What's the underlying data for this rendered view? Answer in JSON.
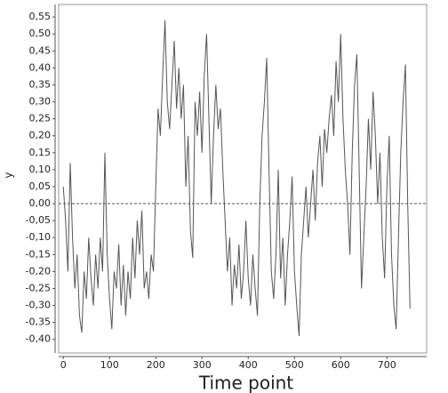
{
  "chart_data": {
    "type": "line",
    "x_label": "Time point",
    "y_label": "y",
    "x": [
      0,
      5,
      10,
      15,
      20,
      25,
      30,
      35,
      40,
      45,
      50,
      55,
      60,
      65,
      70,
      75,
      80,
      85,
      90,
      95,
      100,
      105,
      110,
      115,
      120,
      125,
      130,
      135,
      140,
      145,
      150,
      155,
      160,
      165,
      170,
      175,
      180,
      185,
      190,
      195,
      200,
      205,
      210,
      215,
      220,
      225,
      230,
      235,
      240,
      245,
      250,
      255,
      260,
      265,
      270,
      275,
      280,
      285,
      290,
      295,
      300,
      305,
      310,
      315,
      320,
      325,
      330,
      335,
      340,
      345,
      350,
      355,
      360,
      365,
      370,
      375,
      380,
      385,
      390,
      395,
      400,
      405,
      410,
      415,
      420,
      425,
      430,
      435,
      440,
      445,
      450,
      455,
      460,
      465,
      470,
      475,
      480,
      485,
      490,
      495,
      500,
      505,
      510,
      515,
      520,
      525,
      530,
      535,
      540,
      545,
      550,
      555,
      560,
      565,
      570,
      575,
      580,
      585,
      590,
      595,
      600,
      605,
      610,
      615,
      620,
      625,
      630,
      635,
      640,
      645,
      650,
      655,
      660,
      665,
      670,
      675,
      680,
      685,
      690,
      695,
      700,
      705,
      710,
      715,
      720,
      725,
      730,
      735,
      740,
      745,
      750
    ],
    "series": [
      {
        "color": "#555555",
        "values": [
          0.05,
          -0.05,
          -0.2,
          0.12,
          -0.1,
          -0.25,
          -0.15,
          -0.33,
          -0.38,
          -0.2,
          -0.28,
          -0.1,
          -0.22,
          -0.3,
          -0.15,
          -0.25,
          -0.1,
          -0.2,
          0.15,
          -0.15,
          -0.28,
          -0.37,
          -0.2,
          -0.25,
          -0.12,
          -0.3,
          -0.18,
          -0.33,
          -0.2,
          -0.28,
          -0.1,
          -0.22,
          -0.05,
          -0.15,
          -0.02,
          -0.25,
          -0.2,
          -0.28,
          -0.15,
          -0.2,
          0.05,
          0.28,
          0.2,
          0.38,
          0.54,
          0.3,
          0.22,
          0.35,
          0.48,
          0.28,
          0.4,
          0.25,
          0.35,
          0.05,
          0.2,
          -0.08,
          -0.16,
          0.3,
          0.2,
          0.33,
          0.15,
          0.38,
          0.5,
          0.25,
          0.0,
          0.2,
          0.35,
          0.22,
          0.28,
          0.1,
          -0.05,
          -0.2,
          -0.1,
          -0.3,
          -0.18,
          -0.25,
          -0.12,
          -0.28,
          -0.2,
          -0.05,
          -0.22,
          -0.3,
          -0.15,
          -0.25,
          -0.33,
          0.0,
          0.2,
          0.3,
          0.43,
          0.1,
          -0.2,
          -0.28,
          -0.15,
          0.1,
          -0.22,
          -0.1,
          -0.3,
          -0.15,
          -0.05,
          0.08,
          -0.2,
          -0.3,
          -0.39,
          -0.15,
          -0.05,
          0.05,
          -0.1,
          0.0,
          0.1,
          -0.05,
          0.12,
          0.2,
          0.05,
          0.22,
          0.15,
          0.25,
          0.32,
          0.2,
          0.42,
          0.3,
          0.5,
          0.25,
          0.1,
          0.0,
          -0.15,
          0.15,
          0.35,
          0.44,
          0.1,
          -0.25,
          -0.1,
          0.05,
          0.25,
          0.1,
          0.33,
          0.2,
          0.0,
          0.15,
          -0.1,
          -0.22,
          0.05,
          0.2,
          -0.15,
          -0.3,
          -0.37,
          -0.1,
          0.15,
          0.3,
          0.41,
          0.0,
          -0.31
        ]
      }
    ],
    "reference_line": 0,
    "xlim": [
      -10,
      786
    ],
    "xticks": [
      0,
      100,
      200,
      300,
      400,
      500,
      600,
      700
    ],
    "ylim": [
      -0.44,
      0.587
    ],
    "yticks": [
      {
        "value": -0.4,
        "label": "-0,40"
      },
      {
        "value": -0.35,
        "label": "-0,35"
      },
      {
        "value": -0.3,
        "label": "-0,30"
      },
      {
        "value": -0.25,
        "label": "-0,25"
      },
      {
        "value": -0.2,
        "label": "-0,20"
      },
      {
        "value": -0.15,
        "label": "-0,15"
      },
      {
        "value": -0.1,
        "label": "-0,10"
      },
      {
        "value": -0.05,
        "label": "-0,05"
      },
      {
        "value": 0,
        "label": "0,00"
      },
      {
        "value": 0.05,
        "label": "0,05"
      },
      {
        "value": 0.1,
        "label": "0,10"
      },
      {
        "value": 0.15,
        "label": "0,15"
      },
      {
        "value": 0.2,
        "label": "0,20"
      },
      {
        "value": 0.25,
        "label": "0,25"
      },
      {
        "value": 0.3,
        "label": "0,30"
      },
      {
        "value": 0.35,
        "label": "0,35"
      },
      {
        "value": 0.4,
        "label": "0,40"
      },
      {
        "value": 0.45,
        "label": "0,45"
      },
      {
        "value": 0.5,
        "label": "0,50"
      },
      {
        "value": 0.55,
        "label": "0,55"
      }
    ]
  }
}
